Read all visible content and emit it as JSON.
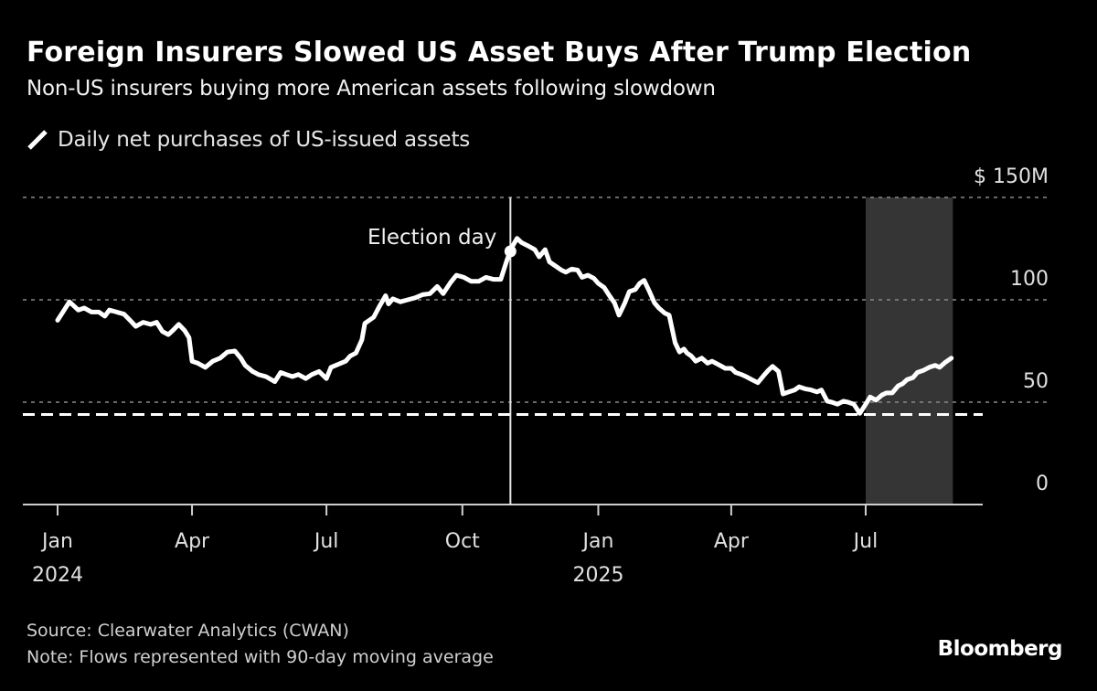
{
  "header": {
    "title": "Foreign Insurers Slowed US Asset Buys After Trump Election",
    "subtitle": "Non-US insurers buying more American assets following slowdown"
  },
  "legend": {
    "items": [
      {
        "label": "Daily net purchases of US-issued assets",
        "icon": "line-swatch-icon",
        "color": "#ffffff"
      }
    ]
  },
  "footer": {
    "source": "Source: Clearwater Analytics (CWAN)",
    "note": "Note: Flows represented with 90-day moving average",
    "brand": "Bloomberg"
  },
  "chart_data": {
    "type": "line",
    "title": "Foreign Insurers Slowed US Asset Buys After Trump Election",
    "subtitle": "Non-US insurers buying more American assets following slowdown",
    "xlabel": "",
    "ylabel": "",
    "y_unit_label": "$ 150M",
    "ylim": [
      0,
      150
    ],
    "yticks": [
      0,
      50,
      100,
      150
    ],
    "ytick_labels": [
      "0",
      "50",
      "100",
      "$ 150M"
    ],
    "y_axis_side": "right",
    "grid": true,
    "x_start_date": "2024-01-01",
    "x_unit": "days since 2024-01-01",
    "xlim_days": [
      -24,
      626
    ],
    "xticks": [
      {
        "day": 0,
        "label": "Jan",
        "sublabel": "2024"
      },
      {
        "day": 91,
        "label": "Apr",
        "sublabel": ""
      },
      {
        "day": 182,
        "label": "Jul",
        "sublabel": ""
      },
      {
        "day": 274,
        "label": "Oct",
        "sublabel": ""
      },
      {
        "day": 366,
        "label": "Jan",
        "sublabel": "2025"
      },
      {
        "day": 456,
        "label": "Apr",
        "sublabel": ""
      },
      {
        "day": 547,
        "label": "Jul",
        "sublabel": ""
      }
    ],
    "legend_position": "top-left",
    "series": [
      {
        "name": "Daily net purchases of US-issued assets",
        "color": "#ffffff",
        "x_days": [
          0,
          4,
          8,
          11,
          14,
          18,
          23,
          28,
          32,
          35,
          40,
          45,
          49,
          53,
          58,
          63,
          67,
          71,
          75,
          78,
          82,
          86,
          89,
          91,
          95,
          100,
          105,
          110,
          115,
          120,
          124,
          127,
          132,
          136,
          141,
          147,
          151,
          155,
          159,
          163,
          168,
          172,
          177,
          182,
          185,
          190,
          195,
          198,
          202,
          206,
          208,
          214,
          218,
          222,
          224,
          227,
          232,
          237,
          242,
          247,
          252,
          257,
          261,
          266,
          270,
          275,
          280,
          285,
          290,
          295,
          300,
          304,
          307,
          311,
          314,
          318,
          323,
          326,
          330,
          333,
          337,
          341,
          344,
          348,
          352,
          355,
          359,
          363,
          366,
          370,
          374,
          377,
          380,
          384,
          387,
          391,
          394,
          397,
          401,
          404,
          407,
          411,
          414,
          418,
          421,
          424,
          426,
          429,
          432,
          436,
          440,
          443,
          447,
          452,
          456,
          459,
          463,
          466,
          470,
          474,
          478,
          481,
          484,
          488,
          491,
          495,
          499,
          502,
          506,
          510,
          514,
          517,
          521,
          524,
          528,
          532,
          535,
          539,
          543,
          547,
          550,
          554,
          558,
          561,
          565,
          569,
          572,
          575,
          579,
          582,
          586,
          590,
          594,
          597,
          601,
          605
        ],
        "values": [
          90,
          94.5,
          99,
          97,
          95,
          96,
          94,
          94,
          92,
          95,
          94,
          93,
          90,
          87,
          89,
          88,
          89,
          84.5,
          83,
          85,
          88,
          85,
          81.5,
          70,
          69,
          67,
          70,
          71.5,
          74.5,
          75,
          71.5,
          68,
          65,
          63.5,
          62.5,
          60,
          64.5,
          63.5,
          62.5,
          63.5,
          61.5,
          63.5,
          65,
          61.5,
          67,
          68.5,
          70,
          72.5,
          74,
          80.5,
          88.5,
          91.5,
          97,
          102,
          98,
          100.5,
          99,
          100,
          101,
          102.5,
          103,
          106.5,
          103,
          108.5,
          112,
          111,
          109,
          109,
          111,
          110,
          110,
          119,
          125,
          130,
          128,
          126.5,
          124.5,
          121,
          124.5,
          118.5,
          116.5,
          114.5,
          113.5,
          115,
          114.5,
          111,
          112,
          110.5,
          108,
          106,
          101.5,
          98.5,
          92.5,
          98.5,
          104,
          105,
          108,
          109.5,
          103.5,
          98.5,
          96,
          93.5,
          92.5,
          79,
          74.5,
          76,
          74,
          72.5,
          70,
          71.5,
          69,
          70,
          68.5,
          66.5,
          66.5,
          64.5,
          63.5,
          62.5,
          61,
          59.5,
          63,
          65.5,
          67.5,
          65,
          54,
          55,
          56,
          57.5,
          56.5,
          56,
          55,
          56,
          50.5,
          50,
          49,
          50.5,
          50,
          49,
          44.5,
          49,
          52.5,
          51,
          53.5,
          54.5,
          54.5,
          58,
          59,
          61,
          62,
          64.5,
          65.5,
          67,
          68,
          67,
          69.5,
          71.5
        ]
      }
    ],
    "reference_lines": [
      {
        "type": "horizontal",
        "value": 44,
        "style": "dashed",
        "color": "#ffffff",
        "label": ""
      }
    ],
    "shaded_regions": [
      {
        "x_start_day": 547,
        "x_end_day": 606,
        "color": "#353535"
      }
    ],
    "annotations": [
      {
        "type": "vertical-line",
        "day": 309,
        "date": "2024-11-05",
        "label": "Election day",
        "marker_value": 125
      }
    ]
  }
}
